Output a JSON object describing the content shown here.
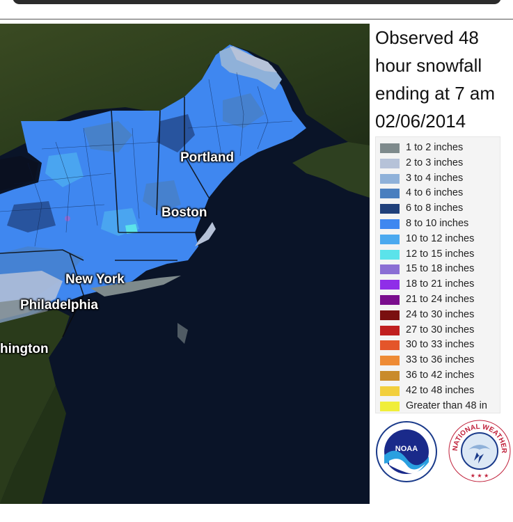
{
  "title_lines": [
    "Observed 48",
    "hour snowfall",
    "ending at 7 am",
    "02/06/2014"
  ],
  "cities": {
    "portland": "Portland",
    "boston": "Boston",
    "new_york": "New York",
    "philadelphia": "Philadelphia",
    "washington": "hington"
  },
  "legend": [
    {
      "label": "1 to 2 inches",
      "color": "#7e8a8c"
    },
    {
      "label": "2 to 3 inches",
      "color": "#b6c2d8"
    },
    {
      "label": "3 to 4 inches",
      "color": "#8fb1d9"
    },
    {
      "label": "4 to 6 inches",
      "color": "#4a7fbf"
    },
    {
      "label": "6 to 8 inches",
      "color": "#1f3f7a"
    },
    {
      "label": "8 to 10 inches",
      "color": "#3f87f0"
    },
    {
      "label": "10 to 12 inches",
      "color": "#4ba9ef"
    },
    {
      "label": "12 to 15 inches",
      "color": "#5be3ea"
    },
    {
      "label": "15 to 18 inches",
      "color": "#8a6ed4"
    },
    {
      "label": "18 to 21 inches",
      "color": "#8f2ee8"
    },
    {
      "label": "21 to 24 inches",
      "color": "#7a0d8d"
    },
    {
      "label": "24 to 30 inches",
      "color": "#7a1010"
    },
    {
      "label": "27 to 30 inches",
      "color": "#c01f1f"
    },
    {
      "label": "30 to 33 inches",
      "color": "#e4552a"
    },
    {
      "label": "33 to 36 inches",
      "color": "#ee8b35"
    },
    {
      "label": "36 to 42 inches",
      "color": "#c98b2b"
    },
    {
      "label": "42 to 48 inches",
      "color": "#f2cf3d"
    },
    {
      "label": "Greater than 48 in",
      "color": "#f0ee3a"
    }
  ],
  "logos": {
    "noaa_text": "NOAA",
    "nws_text": "NATIONAL WEATHER SERVICE"
  }
}
